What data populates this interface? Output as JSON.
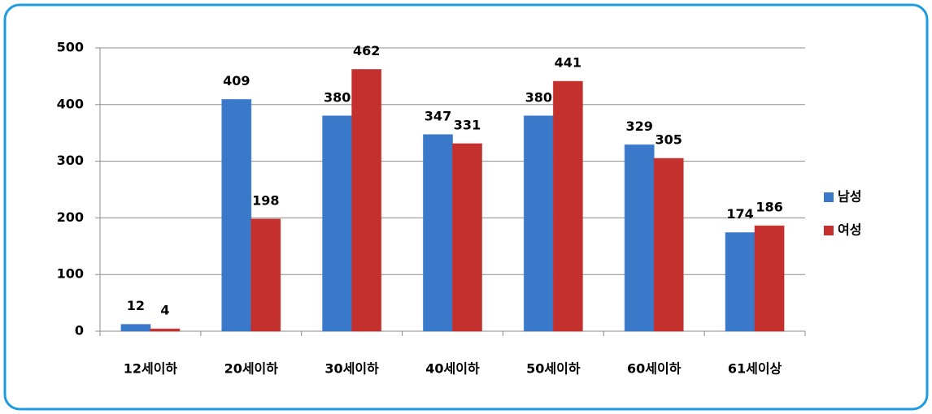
{
  "chart_data": {
    "type": "bar",
    "categories": [
      "12세이하",
      "20세이하",
      "30세이하",
      "40세이하",
      "50세이하",
      "60세이하",
      "61세이상"
    ],
    "series": [
      {
        "name": "남성",
        "color": "#3a78c9",
        "values": [
          12,
          409,
          380,
          347,
          380,
          329,
          174
        ]
      },
      {
        "name": "여성",
        "color": "#c3302d",
        "values": [
          4,
          198,
          462,
          331,
          441,
          305,
          186
        ]
      }
    ],
    "ylim": [
      0,
      500
    ],
    "yticks": [
      0,
      100,
      200,
      300,
      400,
      500
    ],
    "grid": true,
    "legend": "right"
  }
}
